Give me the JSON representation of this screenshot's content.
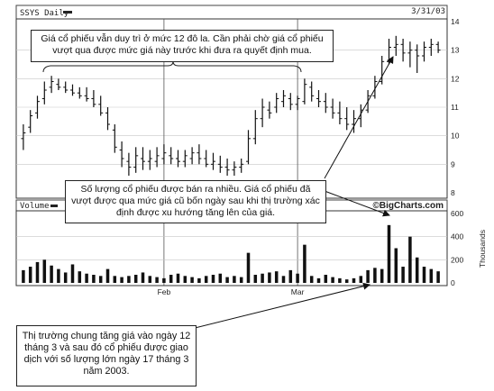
{
  "header": {
    "ticker_label": "SSYS Daily",
    "date_label": "3/31/03"
  },
  "volume_header": {
    "label": "Volume",
    "watermark": "©BigCharts.com"
  },
  "annotations": {
    "top_note": "Giá cổ phiếu vẫn duy trì ở mức 12 đô la. Cần phải chờ giá cổ phiếu vượt qua được mức giá này trước khi đưa ra quyết định mua.",
    "middle_note": "Số lượng cổ phiếu được bán ra nhiều. Giá cổ phiếu đã vượt được qua mức giá cũ bốn ngày sau khi thị trường xác định được xu hướng tăng lên của giá.",
    "bottom_note": "Thị trường chung tăng giá vào ngày 12 tháng 3 và sau đó cổ phiếu được giao dịch với số lượng lớn ngày 17 tháng 3 năm 2003."
  },
  "chart_data": [
    {
      "type": "ohlc",
      "title": "SSYS Daily",
      "date_range_end": "3/31/03",
      "ylim": [
        8,
        14
      ],
      "y_ticks": [
        8,
        9,
        10,
        11,
        12,
        13,
        14
      ],
      "x_ticks": [
        "Feb",
        "Mar"
      ],
      "grid": true,
      "bars": [
        {
          "h": 10.4,
          "l": 9.5,
          "o": 9.9,
          "c": 10.1
        },
        {
          "h": 10.9,
          "l": 10.1,
          "o": 10.3,
          "c": 10.7
        },
        {
          "h": 11.4,
          "l": 10.6,
          "o": 10.8,
          "c": 11.2
        },
        {
          "h": 11.9,
          "l": 11.1,
          "o": 11.3,
          "c": 11.6
        },
        {
          "h": 12.1,
          "l": 11.5,
          "o": 11.7,
          "c": 11.9
        },
        {
          "h": 12.0,
          "l": 11.6,
          "o": 11.8,
          "c": 11.7
        },
        {
          "h": 11.9,
          "l": 11.5,
          "o": 11.7,
          "c": 11.6
        },
        {
          "h": 11.8,
          "l": 11.4,
          "o": 11.6,
          "c": 11.5
        },
        {
          "h": 11.7,
          "l": 11.3,
          "o": 11.5,
          "c": 11.4
        },
        {
          "h": 11.7,
          "l": 11.2,
          "o": 11.4,
          "c": 11.3
        },
        {
          "h": 11.6,
          "l": 11.0,
          "o": 11.3,
          "c": 11.1
        },
        {
          "h": 11.4,
          "l": 10.7,
          "o": 11.1,
          "c": 10.8
        },
        {
          "h": 11.0,
          "l": 10.2,
          "o": 10.8,
          "c": 10.4
        },
        {
          "h": 10.4,
          "l": 9.4,
          "o": 10.2,
          "c": 9.6
        },
        {
          "h": 9.8,
          "l": 8.9,
          "o": 9.5,
          "c": 9.2
        },
        {
          "h": 9.4,
          "l": 8.6,
          "o": 9.1,
          "c": 8.9
        },
        {
          "h": 9.6,
          "l": 8.7,
          "o": 8.9,
          "c": 9.3
        },
        {
          "h": 9.6,
          "l": 8.8,
          "o": 9.2,
          "c": 9.1
        },
        {
          "h": 9.5,
          "l": 8.8,
          "o": 9.1,
          "c": 9.2
        },
        {
          "h": 9.6,
          "l": 8.9,
          "o": 9.1,
          "c": 9.3
        },
        {
          "h": 9.7,
          "l": 9.0,
          "o": 9.2,
          "c": 9.4
        },
        {
          "h": 9.6,
          "l": 9.0,
          "o": 9.3,
          "c": 9.2
        },
        {
          "h": 9.5,
          "l": 8.9,
          "o": 9.2,
          "c": 9.1
        },
        {
          "h": 9.5,
          "l": 8.9,
          "o": 9.1,
          "c": 9.3
        },
        {
          "h": 9.6,
          "l": 9.0,
          "o": 9.2,
          "c": 9.4
        },
        {
          "h": 9.7,
          "l": 9.0,
          "o": 9.4,
          "c": 9.2
        },
        {
          "h": 9.5,
          "l": 8.9,
          "o": 9.2,
          "c": 9.0
        },
        {
          "h": 9.4,
          "l": 8.8,
          "o": 9.0,
          "c": 9.1
        },
        {
          "h": 9.3,
          "l": 8.7,
          "o": 9.0,
          "c": 8.9
        },
        {
          "h": 9.2,
          "l": 8.6,
          "o": 8.9,
          "c": 8.8
        },
        {
          "h": 9.1,
          "l": 8.6,
          "o": 8.8,
          "c": 8.9
        },
        {
          "h": 9.2,
          "l": 8.7,
          "o": 8.9,
          "c": 9.0
        },
        {
          "h": 10.2,
          "l": 9.0,
          "o": 9.1,
          "c": 9.9
        },
        {
          "h": 10.9,
          "l": 9.7,
          "o": 9.9,
          "c": 10.6
        },
        {
          "h": 11.3,
          "l": 10.3,
          "o": 10.6,
          "c": 11.0
        },
        {
          "h": 11.2,
          "l": 10.6,
          "o": 10.9,
          "c": 10.8
        },
        {
          "h": 11.5,
          "l": 10.8,
          "o": 11.0,
          "c": 11.3
        },
        {
          "h": 11.6,
          "l": 11.0,
          "o": 11.2,
          "c": 11.4
        },
        {
          "h": 11.5,
          "l": 10.9,
          "o": 11.3,
          "c": 11.1
        },
        {
          "h": 11.4,
          "l": 10.9,
          "o": 11.1,
          "c": 11.3
        },
        {
          "h": 12.0,
          "l": 11.1,
          "o": 11.2,
          "c": 11.8
        },
        {
          "h": 11.9,
          "l": 11.2,
          "o": 11.7,
          "c": 11.4
        },
        {
          "h": 11.6,
          "l": 11.0,
          "o": 11.3,
          "c": 11.2
        },
        {
          "h": 11.5,
          "l": 10.8,
          "o": 11.2,
          "c": 11.0
        },
        {
          "h": 11.3,
          "l": 10.6,
          "o": 11.0,
          "c": 10.8
        },
        {
          "h": 11.2,
          "l": 10.4,
          "o": 10.8,
          "c": 10.6
        },
        {
          "h": 11.0,
          "l": 10.2,
          "o": 10.6,
          "c": 10.4
        },
        {
          "h": 10.9,
          "l": 10.1,
          "o": 10.4,
          "c": 10.6
        },
        {
          "h": 11.1,
          "l": 10.3,
          "o": 10.6,
          "c": 10.9
        },
        {
          "h": 11.6,
          "l": 10.8,
          "o": 10.9,
          "c": 11.4
        },
        {
          "h": 12.1,
          "l": 11.3,
          "o": 11.4,
          "c": 11.9
        },
        {
          "h": 12.8,
          "l": 11.8,
          "o": 11.9,
          "c": 12.6
        },
        {
          "h": 13.4,
          "l": 12.5,
          "o": 12.6,
          "c": 13.1
        },
        {
          "h": 13.5,
          "l": 12.8,
          "o": 13.1,
          "c": 13.2
        },
        {
          "h": 13.4,
          "l": 12.6,
          "o": 13.2,
          "c": 12.9
        },
        {
          "h": 13.3,
          "l": 12.4,
          "o": 12.9,
          "c": 13.0
        },
        {
          "h": 13.2,
          "l": 12.2,
          "o": 13.0,
          "c": 12.8
        },
        {
          "h": 13.3,
          "l": 12.6,
          "o": 12.8,
          "c": 13.1
        },
        {
          "h": 13.4,
          "l": 12.8,
          "o": 13.1,
          "c": 13.2
        },
        {
          "h": 13.3,
          "l": 12.9,
          "o": 13.2,
          "c": 13.0
        }
      ]
    },
    {
      "type": "bar",
      "title": "Volume",
      "ylabel": "Thousands",
      "ylim": [
        0,
        600
      ],
      "y_ticks": [
        0,
        200,
        400,
        600
      ],
      "values": [
        110,
        140,
        180,
        200,
        150,
        120,
        90,
        160,
        100,
        80,
        70,
        60,
        120,
        60,
        50,
        60,
        70,
        90,
        60,
        50,
        40,
        70,
        80,
        60,
        50,
        40,
        60,
        70,
        80,
        50,
        60,
        50,
        260,
        70,
        80,
        90,
        100,
        60,
        110,
        80,
        330,
        60,
        40,
        70,
        50,
        40,
        30,
        40,
        60,
        110,
        130,
        120,
        500,
        300,
        140,
        400,
        220,
        140,
        120,
        100
      ]
    }
  ]
}
